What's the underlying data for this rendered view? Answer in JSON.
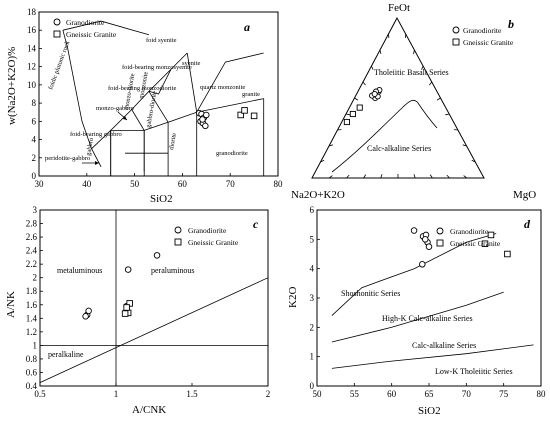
{
  "chart_data": [
    {
      "panel": "a",
      "type": "scatter",
      "xlabel": "SiO2",
      "ylabel": "w(Na2O+K2O)%",
      "xlim": [
        30,
        80
      ],
      "ylim": [
        0,
        18
      ],
      "xticks": [
        30,
        40,
        50,
        60,
        70,
        80
      ],
      "yticks": [
        0,
        2,
        4,
        6,
        8,
        10,
        12,
        14,
        16,
        18
      ],
      "legend": [
        "Granodiorite",
        "Gneissic Granite"
      ],
      "legend_position": "top-left",
      "field_labels": [
        "foidic plutonic rock",
        "foid syenite",
        "foid-bearing monzosyenite",
        "syenite",
        "foid-bearing monzodiorite",
        "monzo-gabbro",
        "monzonite",
        "quartz monzonite",
        "granite",
        "foid-bearing gabbro",
        "monzo-diorite",
        "gabbro-diorite",
        "gabbro",
        "diorite",
        "granodiorite",
        "peridotite-gabbro"
      ],
      "series": [
        {
          "name": "Granodiorite",
          "marker": "circle",
          "points": [
            [
              63.5,
              6.9
            ],
            [
              64.0,
              6.8
            ],
            [
              64.5,
              6.4
            ],
            [
              63.8,
              6.0
            ],
            [
              64.3,
              5.8
            ],
            [
              64.8,
              5.5
            ],
            [
              65.0,
              6.7
            ],
            [
              64.2,
              6.2
            ]
          ]
        },
        {
          "name": "Gneissic Granite",
          "marker": "square",
          "points": [
            [
              72.2,
              6.7
            ],
            [
              73.0,
              7.2
            ],
            [
              75.0,
              6.6
            ]
          ]
        }
      ]
    },
    {
      "panel": "b",
      "type": "scatter",
      "vertices": [
        "FeOt",
        "Na2O+K2O",
        "MgO"
      ],
      "legend": [
        "Granodiorite",
        "Gneissic Granite"
      ],
      "legend_position": "top-right",
      "field_labels": [
        "Tholeiitic Basalt Series",
        "Calc-alkaline Series"
      ],
      "series": [
        {
          "name": "Granodiorite",
          "marker": "circle",
          "points_afm": [
            [
              50.0,
              38.0,
              12.0
            ],
            [
              51.0,
              36.0,
              13.0
            ],
            [
              51.5,
              39.0,
              9.5
            ],
            [
              54.0,
              34.0,
              12.0
            ],
            [
              55.0,
              33.0,
              12.0
            ],
            [
              54.0,
              35.5,
              10.5
            ],
            [
              52.5,
              37.0,
              10.5
            ]
          ]
        },
        {
          "name": "Gneissic Granite",
          "marker": "square",
          "points_afm": [
            [
              40.0,
              56.0,
              4.0
            ],
            [
              35.0,
              62.0,
              3.0
            ],
            [
              44.0,
              50.0,
              6.0
            ]
          ]
        }
      ]
    },
    {
      "panel": "c",
      "type": "scatter",
      "xlabel": "A/CNK",
      "ylabel": "A/NK",
      "xlim": [
        0.5,
        2.0
      ],
      "ylim": [
        0.4,
        3.0
      ],
      "xticks": [
        0.5,
        1.0,
        1.5,
        2.0
      ],
      "yticks": [
        0.4,
        0.6,
        0.8,
        1.0,
        1.2,
        1.4,
        1.6,
        1.8,
        2.0,
        2.2,
        2.4,
        2.6,
        2.8,
        3.0
      ],
      "legend": [
        "Granodiorite",
        "Gneissic Granite"
      ],
      "legend_position": "top-right",
      "field_labels": [
        "metaluminous",
        "peraluminous",
        "peralkaline"
      ],
      "series": [
        {
          "name": "Granodiorite",
          "marker": "circle",
          "points": [
            [
              0.81,
              1.45
            ],
            [
              0.82,
              1.51
            ],
            [
              0.8,
              1.43
            ],
            [
              1.08,
              2.12
            ],
            [
              1.27,
              2.33
            ],
            [
              1.07,
              1.58
            ]
          ]
        },
        {
          "name": "Gneissic Granite",
          "marker": "square",
          "points": [
            [
              1.08,
              1.48
            ],
            [
              1.09,
              1.62
            ],
            [
              1.06,
              1.47
            ],
            [
              1.07,
              1.56
            ]
          ]
        }
      ]
    },
    {
      "panel": "d",
      "type": "scatter",
      "xlabel": "SiO2",
      "ylabel": "K2O",
      "xlim": [
        50,
        80
      ],
      "ylim": [
        0,
        6
      ],
      "xticks": [
        50,
        55,
        60,
        65,
        70,
        75,
        80
      ],
      "yticks": [
        0,
        1,
        2,
        3,
        4,
        5,
        6
      ],
      "legend": [
        "Granodiorite",
        "Gneissic Granite"
      ],
      "legend_position": "top-right",
      "field_labels": [
        "Shoshonitic Series",
        "High-K Calc-alkaline Series",
        "Calc-alkaline Series",
        "Low-K Tholeiitic Series"
      ],
      "series": [
        {
          "name": "Granodiorite",
          "marker": "circle",
          "points": [
            [
              63.0,
              5.3
            ],
            [
              64.2,
              5.1
            ],
            [
              64.6,
              5.15
            ],
            [
              64.8,
              4.9
            ],
            [
              65.0,
              4.75
            ],
            [
              64.1,
              4.15
            ],
            [
              64.5,
              5.0
            ]
          ]
        },
        {
          "name": "Gneissic Granite",
          "marker": "square",
          "points": [
            [
              72.5,
              4.85
            ],
            [
              73.3,
              5.15
            ],
            [
              75.5,
              4.5
            ]
          ]
        }
      ]
    }
  ]
}
